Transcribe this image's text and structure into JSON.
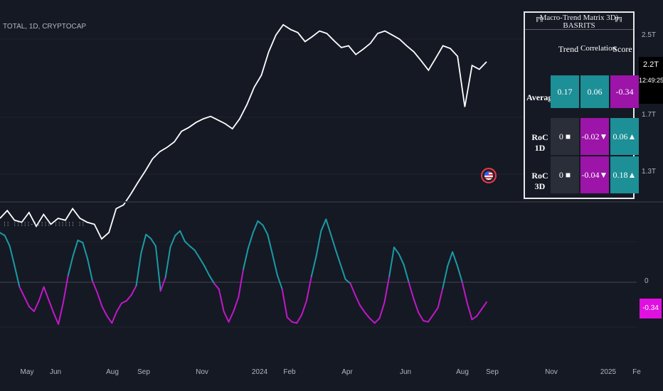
{
  "ticker_label": "TOTAL, 1D, CRYPTOCAP",
  "indicator_title": "⁞⁞ ⁞⁞⁞⁞⁞-⁞⁞⁞⁞⁞ ⁞⁞⁞⁞⁞⁞ ⁞⁞",
  "colors": {
    "background": "#151924",
    "price_line": "#ffffff",
    "oscillator_positive": "#1a9ba5",
    "oscillator_negative": "#c218c8",
    "cell_teal": "#1d8f97",
    "cell_magenta": "#9c14a8",
    "cell_dark": "#2a2e39",
    "indicator_value_box": "#e010e0"
  },
  "price_axis": {
    "ticks": [
      "2.5T",
      "1.7T",
      "1.3T"
    ],
    "current_value": "2.2T",
    "countdown": "12:49:25"
  },
  "indicator_axis": {
    "zero_label": "0",
    "current_value": "-0.34"
  },
  "time_axis": [
    "May",
    "Jun",
    "Aug",
    "Sep",
    "Nov",
    "2024",
    "Feb",
    "Apr",
    "Jun",
    "Aug",
    "Sep",
    "Nov",
    "2025",
    "Fe"
  ],
  "matrix_table": {
    "title": "Macro-Trend Matrix 3D) BASRITS",
    "pin_icon": "pin-icon",
    "columns": [
      "Trend",
      "Correlation",
      "Score"
    ],
    "rows": [
      {
        "label": "Average",
        "trend": "0.17",
        "correlation": "0.06",
        "score": "-0.34"
      },
      {
        "label": "RoC 1D",
        "trend": "0 ■",
        "correlation": "-0.02▼",
        "score": "0.06▲"
      },
      {
        "label": "RoC 3D",
        "trend": "0 ■",
        "correlation": "-0.04▼",
        "score": "0.18▲"
      }
    ]
  },
  "event_icon": "us-flag-icon",
  "chart_data": [
    {
      "type": "line",
      "series": [
        {
          "values": [
            1.05,
            1.09,
            1.04,
            1.03,
            1.08,
            1.01,
            1.07,
            1.02,
            1.05,
            1.04,
            1.1,
            1.05,
            1.03,
            1.02,
            0.95,
            0.98,
            1.1,
            1.12,
            1.18,
            1.25,
            1.32,
            1.4,
            1.45,
            1.48,
            1.52,
            1.6,
            1.63,
            1.67,
            1.7,
            1.72,
            1.69,
            1.66,
            1.62,
            1.7,
            1.82,
            1.98,
            2.1,
            2.35,
            2.55,
            2.68,
            2.62,
            2.58,
            2.47,
            2.53,
            2.6,
            2.57,
            2.48,
            2.4,
            2.42,
            2.32,
            2.38,
            2.45,
            2.57,
            2.6,
            2.55,
            2.5,
            2.42,
            2.35,
            2.25,
            2.15,
            2.28,
            2.42,
            2.39,
            2.3,
            1.8,
            2.2,
            2.16,
            2.24
          ]
        }
      ],
      "x_range": [
        "2023-05",
        "2024-08-28"
      ],
      "y_ticks": [
        "2.5T",
        "1.7T",
        "1.3T"
      ]
    },
    {
      "type": "line",
      "series": [
        {
          "values": [
            0.85,
            0.8,
            0.62,
            0.28,
            -0.08,
            -0.25,
            -0.42,
            -0.5,
            -0.32,
            -0.08,
            -0.3,
            -0.52,
            -0.72,
            -0.35,
            0.12,
            0.45,
            0.72,
            0.68,
            0.4,
            0.02,
            -0.18,
            -0.42,
            -0.58,
            -0.7,
            -0.5,
            -0.36,
            -0.32,
            -0.22,
            -0.06,
            0.5,
            0.82,
            0.75,
            0.62,
            -0.15,
            0.08,
            0.6,
            0.8,
            0.88,
            0.7,
            0.62,
            0.55,
            0.42,
            0.28,
            0.12,
            -0.02,
            -0.12,
            -0.5,
            -0.68,
            -0.5,
            -0.26,
            0.22,
            0.58,
            0.85,
            1.05,
            0.98,
            0.82,
            0.48,
            0.12,
            -0.12,
            -0.6,
            -0.68,
            -0.7,
            -0.56,
            -0.32,
            0.1,
            0.45,
            0.88,
            1.08,
            0.82,
            0.55,
            0.3,
            0.05,
            -0.02,
            -0.22,
            -0.4,
            -0.52,
            -0.62,
            -0.7,
            -0.62,
            -0.35,
            0.1,
            0.6,
            0.48,
            0.3,
            0.0,
            -0.28,
            -0.52,
            -0.66,
            -0.68,
            -0.56,
            -0.44,
            -0.1,
            0.28,
            0.52,
            0.28,
            0.0,
            -0.35,
            -0.64,
            -0.58,
            -0.46,
            -0.34
          ]
        }
      ],
      "zero_line": 0,
      "ylim": [
        -0.85,
        1.2
      ],
      "current_value": -0.34
    }
  ]
}
